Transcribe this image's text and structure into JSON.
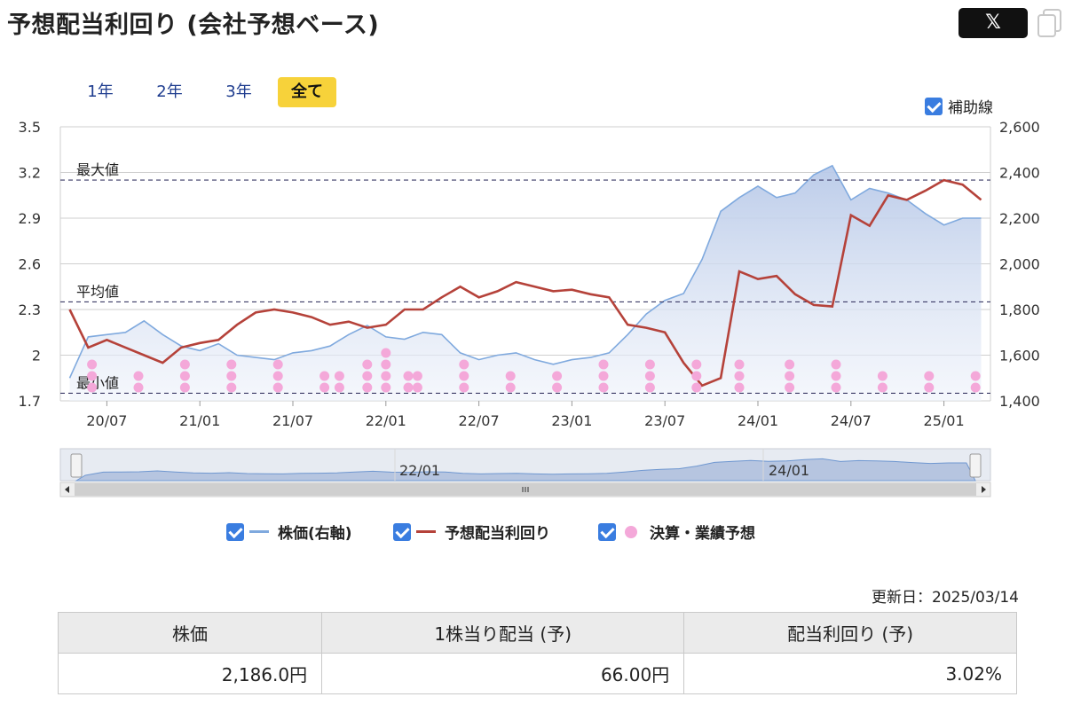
{
  "header": {
    "title": "予想配当利回り (会社予想ベース)",
    "share_label": "𝕏"
  },
  "range_tabs": [
    {
      "label": "1年",
      "active": false
    },
    {
      "label": "2年",
      "active": false
    },
    {
      "label": "3年",
      "active": false
    },
    {
      "label": "全て",
      "active": true
    }
  ],
  "aux_lines_toggle": {
    "label": "補助線",
    "checked": true
  },
  "legend": [
    {
      "label": "株価(右軸)",
      "checked": true,
      "color": "#7fa9de",
      "kind": "line"
    },
    {
      "label": "予想配当利回り",
      "checked": true,
      "color": "#b5423a",
      "kind": "line"
    },
    {
      "label": "決算・業績予想",
      "checked": true,
      "color": "#f4a8d9",
      "kind": "dot"
    }
  ],
  "updated": "更新日：2025/03/14",
  "summary_table": {
    "headers": [
      "株価",
      "1株当り配当 (予)",
      "配当利回り (予)"
    ],
    "values": [
      "2,186.0円",
      "66.00円",
      "3.02%"
    ]
  },
  "chart_data": {
    "type": "line",
    "x_ticks": [
      "20/07",
      "21/01",
      "21/07",
      "22/01",
      "22/07",
      "23/01",
      "23/07",
      "24/01",
      "24/07",
      "25/01"
    ],
    "y_left_ticks": [
      "3.5",
      "3.2",
      "2.9",
      "2.6",
      "2.3",
      "2",
      "1.7"
    ],
    "y_right_ticks": [
      "2,600",
      "2,400",
      "2,200",
      "2,000",
      "1,800",
      "1,600",
      "1,400"
    ],
    "ylim_left": [
      1.7,
      3.5
    ],
    "ylim_right": [
      1400,
      2600
    ],
    "reference_lines": [
      {
        "label": "最大値",
        "value": 3.15
      },
      {
        "label": "平均値",
        "value": 2.35
      },
      {
        "label": "最小値",
        "value": 1.75
      }
    ],
    "series": [
      {
        "name": "株価(右軸)",
        "axis": "right",
        "color": "#7fa9de",
        "x": [
          2020.3,
          2020.4,
          2020.5,
          2020.6,
          2020.7,
          2020.8,
          2020.9,
          2021.0,
          2021.1,
          2021.2,
          2021.3,
          2021.4,
          2021.5,
          2021.6,
          2021.7,
          2021.8,
          2021.9,
          2022.0,
          2022.1,
          2022.2,
          2022.3,
          2022.4,
          2022.5,
          2022.6,
          2022.7,
          2022.8,
          2022.9,
          2023.0,
          2023.1,
          2023.2,
          2023.3,
          2023.4,
          2023.5,
          2023.6,
          2023.7,
          2023.8,
          2023.9,
          2024.0,
          2024.1,
          2024.2,
          2024.3,
          2024.4,
          2024.5,
          2024.6,
          2024.7,
          2024.8,
          2024.9,
          2025.0,
          2025.1,
          2025.2
        ],
        "values": [
          1500,
          1680,
          1690,
          1700,
          1750,
          1690,
          1640,
          1620,
          1650,
          1600,
          1590,
          1580,
          1610,
          1620,
          1640,
          1690,
          1730,
          1680,
          1670,
          1700,
          1690,
          1610,
          1580,
          1600,
          1610,
          1580,
          1560,
          1580,
          1590,
          1610,
          1690,
          1780,
          1840,
          1870,
          2020,
          2230,
          2290,
          2340,
          2290,
          2310,
          2390,
          2430,
          2280,
          2330,
          2310,
          2280,
          2220,
          2170,
          2200,
          2200
        ]
      },
      {
        "name": "予想配当利回り",
        "axis": "left",
        "color": "#b5423a",
        "x": [
          2020.3,
          2020.4,
          2020.5,
          2020.6,
          2020.7,
          2020.8,
          2020.9,
          2021.0,
          2021.1,
          2021.2,
          2021.3,
          2021.4,
          2021.5,
          2021.6,
          2021.7,
          2021.8,
          2021.9,
          2022.0,
          2022.1,
          2022.2,
          2022.3,
          2022.4,
          2022.5,
          2022.6,
          2022.7,
          2022.8,
          2022.9,
          2023.0,
          2023.1,
          2023.2,
          2023.3,
          2023.4,
          2023.5,
          2023.6,
          2023.7,
          2023.8,
          2023.9,
          2024.0,
          2024.1,
          2024.2,
          2024.3,
          2024.4,
          2024.5,
          2024.6,
          2024.7,
          2024.8,
          2024.9,
          2025.0,
          2025.1,
          2025.2
        ],
        "values": [
          2.3,
          2.05,
          2.1,
          2.05,
          2.0,
          1.95,
          2.05,
          2.08,
          2.1,
          2.2,
          2.28,
          2.3,
          2.28,
          2.25,
          2.2,
          2.22,
          2.18,
          2.2,
          2.3,
          2.3,
          2.38,
          2.45,
          2.38,
          2.42,
          2.48,
          2.45,
          2.42,
          2.43,
          2.4,
          2.38,
          2.2,
          2.18,
          2.15,
          1.95,
          1.8,
          1.85,
          2.55,
          2.5,
          2.52,
          2.4,
          2.33,
          2.32,
          2.92,
          2.85,
          3.05,
          3.02,
          3.08,
          3.15,
          3.12,
          3.02
        ]
      }
    ],
    "events": {
      "name": "決算・業績予想",
      "color": "#f4a8d9",
      "x": [
        2020.42,
        2020.67,
        2020.92,
        2021.17,
        2021.42,
        2021.67,
        2021.75,
        2021.9,
        2022.0,
        2022.12,
        2022.17,
        2022.42,
        2022.67,
        2022.92,
        2023.17,
        2023.42,
        2023.67,
        2023.9,
        2024.17,
        2024.42,
        2024.67,
        2024.92,
        2025.17
      ],
      "stack": [
        3,
        2,
        3,
        3,
        3,
        2,
        2,
        3,
        4,
        2,
        2,
        3,
        2,
        2,
        3,
        3,
        3,
        3,
        3,
        3,
        2,
        2,
        2
      ]
    },
    "navigator": {
      "labels": [
        "22/01",
        "24/01"
      ]
    },
    "grid": true
  }
}
